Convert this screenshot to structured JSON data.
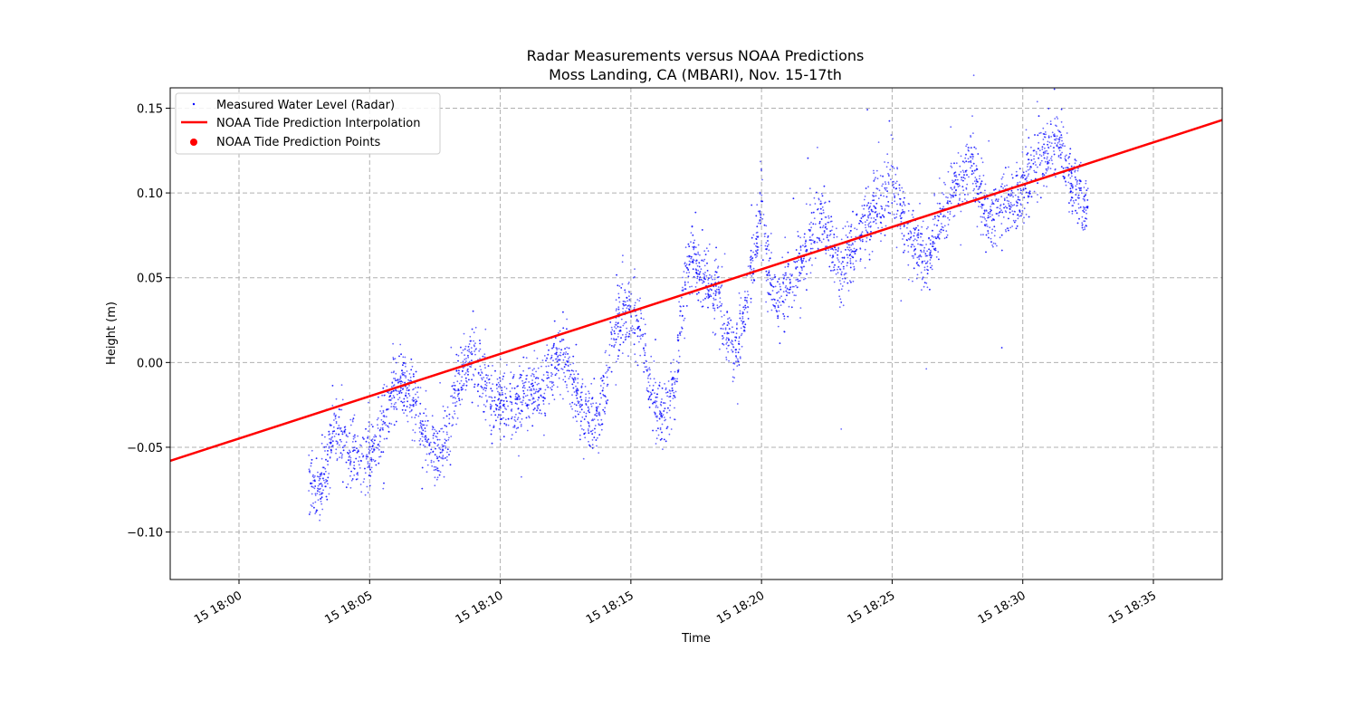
{
  "chart_data": {
    "type": "line",
    "title": "Radar Measurements versus NOAA Predictions",
    "subtitle": "Moss Landing, CA (MBARI), Nov. 15-17th",
    "xlabel": "Time",
    "ylabel": "Height (m)",
    "x_axis_type": "time",
    "xlim": [
      "2024-11-15 17:57:22",
      "2024-11-15 18:37:38"
    ],
    "ylim": [
      -0.128,
      0.162
    ],
    "grid": true,
    "legend_position": "top-left",
    "x_ticks": [
      "15 18:00",
      "15 18:05",
      "15 18:10",
      "15 18:15",
      "15 18:20",
      "15 18:25",
      "15 18:30",
      "15 18:35"
    ],
    "y_ticks": [
      "-0.10",
      "-0.05",
      "0.00",
      "0.05",
      "0.10",
      "0.15"
    ],
    "series": [
      {
        "name": "Measured Water Level (Radar)",
        "kind": "scatter",
        "color": "#0000ff",
        "x_range": [
          "2024-11-15 18:02:40",
          "2024-11-15 18:32:30"
        ],
        "envelope": {
          "x_min": [
            "18:02:40",
            "18:03:00",
            "18:03:20",
            "18:03:40",
            "18:04:00",
            "18:04:20",
            "18:04:40",
            "18:05:00",
            "18:05:20",
            "18:05:40",
            "18:06:00",
            "18:06:20",
            "18:06:40",
            "18:07:00",
            "18:07:20",
            "18:07:40",
            "18:08:00",
            "18:08:20",
            "18:08:40",
            "18:09:00",
            "18:09:20",
            "18:09:40",
            "18:10:00",
            "18:10:30",
            "18:11:00",
            "18:11:30",
            "18:12:00",
            "18:12:20",
            "18:12:40",
            "18:13:00",
            "18:13:20",
            "18:13:40",
            "18:14:00",
            "18:14:20",
            "18:14:40",
            "18:15:00",
            "18:15:20",
            "18:15:40",
            "18:16:00",
            "18:16:20",
            "18:16:40",
            "18:17:00",
            "18:17:20",
            "18:17:40",
            "18:18:00",
            "18:18:20",
            "18:18:40",
            "18:19:00",
            "18:19:20",
            "18:19:40",
            "18:20:00",
            "18:20:20",
            "18:20:40",
            "18:21:00",
            "18:21:20",
            "18:21:40",
            "18:22:00",
            "18:22:20",
            "18:22:40",
            "18:23:00",
            "18:23:20",
            "18:23:40",
            "18:24:00",
            "18:24:20",
            "18:24:40",
            "18:25:00",
            "18:25:20",
            "18:25:40",
            "18:26:00",
            "18:26:20",
            "18:26:40",
            "18:27:00",
            "18:27:20",
            "18:27:40",
            "18:28:00",
            "18:28:20",
            "18:28:40",
            "18:29:00",
            "18:29:20",
            "18:29:40",
            "18:30:00",
            "18:30:20",
            "18:30:40",
            "18:31:00",
            "18:31:20",
            "18:31:40",
            "18:32:00",
            "18:32:30"
          ],
          "y_center": [
            -0.07,
            -0.075,
            -0.06,
            -0.04,
            -0.045,
            -0.055,
            -0.06,
            -0.055,
            -0.045,
            -0.03,
            -0.015,
            -0.01,
            -0.02,
            -0.04,
            -0.05,
            -0.055,
            -0.04,
            -0.015,
            0.0,
            0.005,
            -0.01,
            -0.02,
            -0.025,
            -0.025,
            -0.02,
            -0.02,
            0.0,
            0.005,
            -0.005,
            -0.025,
            -0.03,
            -0.035,
            -0.015,
            0.015,
            0.03,
            0.03,
            0.02,
            -0.01,
            -0.03,
            -0.03,
            -0.015,
            0.04,
            0.065,
            0.055,
            0.045,
            0.04,
            0.015,
            0.005,
            0.025,
            0.06,
            0.09,
            0.05,
            0.035,
            0.04,
            0.055,
            0.065,
            0.08,
            0.085,
            0.07,
            0.055,
            0.06,
            0.07,
            0.085,
            0.09,
            0.095,
            0.11,
            0.09,
            0.075,
            0.07,
            0.06,
            0.075,
            0.09,
            0.1,
            0.11,
            0.12,
            0.1,
            0.08,
            0.09,
            0.1,
            0.095,
            0.1,
            0.11,
            0.12,
            0.125,
            0.13,
            0.115,
            0.1,
            0.09
          ],
          "y_spread": 0.018
        }
      },
      {
        "name": "NOAA Tide Prediction Interpolation",
        "kind": "line",
        "color": "#ff0000",
        "x": [
          "2024-11-15 17:57:22",
          "2024-11-15 18:37:38"
        ],
        "y": [
          -0.058,
          0.143
        ]
      },
      {
        "name": "NOAA Tide Prediction Points",
        "kind": "points",
        "color": "#ff0000",
        "x": [],
        "y": []
      }
    ]
  }
}
